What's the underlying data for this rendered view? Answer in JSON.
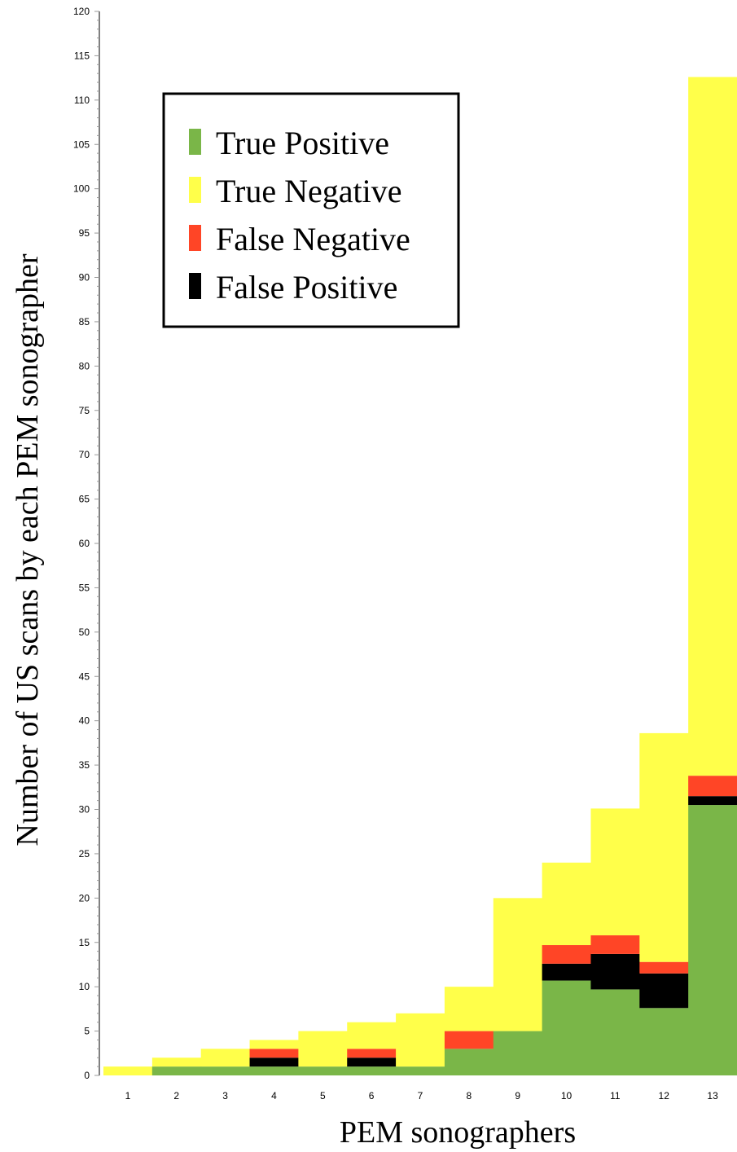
{
  "chart_data": {
    "type": "bar",
    "stacked": true,
    "xlabel": "PEM sonographers",
    "ylabel": "Number of US scans by each PEM sonographer",
    "ylim": [
      0,
      120
    ],
    "ytick_step": 5,
    "categories": [
      "1",
      "2",
      "3",
      "4",
      "5",
      "6",
      "7",
      "8",
      "9",
      "10",
      "11",
      "12",
      "13"
    ],
    "series": [
      {
        "name": "True Positive",
        "color": "#7ab648",
        "values": [
          0,
          1,
          1,
          1,
          1,
          1,
          1,
          3,
          5,
          10.7,
          9.7,
          7.6,
          30.5
        ]
      },
      {
        "name": "False Positive",
        "color": "#000000",
        "values": [
          0,
          0,
          0,
          1,
          0,
          1,
          0,
          0,
          0,
          1.9,
          4,
          3.9,
          1
        ]
      },
      {
        "name": "False Negative",
        "color": "#ff4526",
        "values": [
          0,
          0,
          0,
          1,
          0,
          1,
          0,
          2,
          0,
          2.1,
          2.1,
          1.3,
          2.3
        ]
      },
      {
        "name": "True Negative",
        "color": "#ffff4a",
        "values": [
          1,
          1,
          2,
          1,
          4,
          3,
          6,
          5,
          15,
          9.3,
          14.3,
          25.8,
          78.8
        ]
      }
    ],
    "legend": {
      "placement": "top-left",
      "order": [
        "True Positive",
        "True Negative",
        "False Negative",
        "False Positive"
      ]
    }
  }
}
